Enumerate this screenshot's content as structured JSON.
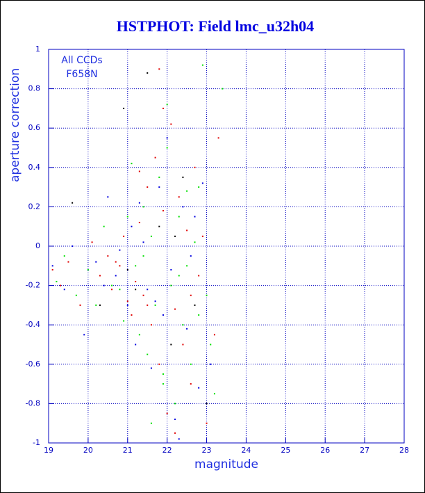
{
  "chart_data": {
    "type": "scatter",
    "title": "HSTPHOT: Field lmc_u32h04",
    "xlabel": "magnitude",
    "ylabel": "aperture correction",
    "annotations": [
      "All CCDs",
      "F658N"
    ],
    "xlim": [
      19,
      28
    ],
    "ylim": [
      -1,
      1
    ],
    "xticks": [
      19,
      20,
      21,
      22,
      23,
      24,
      25,
      26,
      27,
      28
    ],
    "yticks": [
      -1,
      -0.8,
      -0.6,
      -0.4,
      -0.2,
      0,
      0.2,
      0.4,
      0.6,
      0.8,
      1
    ],
    "grid": true,
    "series": [
      {
        "color": "#e00000",
        "x": [
          19.1,
          19.3,
          19.5,
          19.8,
          20.1,
          20.3,
          20.5,
          20.6,
          20.8,
          20.9,
          21.0,
          21.1,
          21.2,
          21.3,
          21.4,
          21.5,
          21.6,
          21.7,
          21.8,
          21.9,
          22.0,
          22.1,
          22.2,
          22.3,
          22.4,
          22.5,
          22.6,
          22.7,
          22.8,
          22.9,
          23.0,
          23.2,
          21.5,
          21.9,
          22.2,
          21.3,
          20.7,
          22.6,
          21.8,
          23.3
        ],
        "values": [
          -0.12,
          -0.2,
          -0.08,
          -0.3,
          0.02,
          -0.15,
          -0.05,
          -0.22,
          -0.1,
          0.05,
          -0.28,
          -0.35,
          -0.18,
          0.12,
          -0.25,
          0.3,
          -0.4,
          0.45,
          -0.6,
          0.18,
          -0.85,
          0.62,
          -0.32,
          0.25,
          -0.5,
          0.08,
          -0.7,
          0.4,
          -0.15,
          0.05,
          -0.9,
          -0.45,
          -0.3,
          0.7,
          -0.95,
          0.38,
          -0.08,
          -0.25,
          0.9,
          0.55
        ]
      },
      {
        "color": "#00e000",
        "x": [
          19.2,
          19.4,
          19.7,
          20.0,
          20.2,
          20.4,
          20.6,
          20.9,
          21.0,
          21.2,
          21.3,
          21.4,
          21.5,
          21.6,
          21.7,
          21.8,
          21.9,
          22.0,
          22.1,
          22.2,
          22.3,
          22.4,
          22.5,
          22.6,
          22.7,
          22.8,
          22.9,
          23.0,
          23.1,
          23.4,
          21.1,
          21.6,
          22.0,
          22.3,
          20.8,
          21.9,
          22.5,
          22.8,
          21.4,
          23.2
        ],
        "values": [
          -0.18,
          -0.05,
          -0.25,
          -0.12,
          -0.3,
          0.1,
          -0.2,
          -0.38,
          0.15,
          -0.1,
          -0.45,
          0.2,
          -0.55,
          0.05,
          -0.3,
          0.35,
          -0.7,
          0.5,
          -0.2,
          -0.8,
          0.15,
          -0.4,
          0.28,
          -0.6,
          0.02,
          -0.35,
          0.92,
          -0.25,
          -0.5,
          0.8,
          0.42,
          -0.9,
          0.72,
          -0.15,
          -0.22,
          -0.65,
          -0.1,
          0.3,
          -0.05,
          -0.75
        ]
      },
      {
        "color": "#0000e0",
        "x": [
          19.1,
          19.4,
          19.6,
          19.9,
          20.2,
          20.4,
          20.5,
          20.7,
          21.0,
          21.1,
          21.2,
          21.4,
          21.5,
          21.6,
          21.8,
          21.9,
          22.0,
          22.1,
          22.2,
          22.4,
          22.5,
          22.6,
          22.8,
          22.9,
          23.1,
          20.8,
          21.3,
          21.7,
          22.3,
          22.7
        ],
        "values": [
          -0.1,
          -0.22,
          0.0,
          -0.45,
          -0.08,
          -0.2,
          0.25,
          -0.15,
          -0.3,
          0.1,
          -0.5,
          0.02,
          -0.22,
          -0.62,
          0.3,
          -0.35,
          0.55,
          -0.12,
          -0.88,
          0.2,
          -0.42,
          -0.05,
          -0.72,
          0.32,
          -0.6,
          -0.02,
          0.22,
          -0.28,
          -0.98,
          0.15
        ]
      },
      {
        "color": "#000000",
        "x": [
          19.6,
          20.3,
          20.9,
          21.2,
          21.5,
          21.8,
          22.1,
          22.4,
          22.7,
          23.0,
          21.0,
          22.2
        ],
        "values": [
          0.22,
          -0.3,
          0.7,
          -0.22,
          0.88,
          0.1,
          -0.5,
          0.35,
          -0.3,
          -0.8,
          -0.12,
          0.05
        ]
      }
    ]
  }
}
